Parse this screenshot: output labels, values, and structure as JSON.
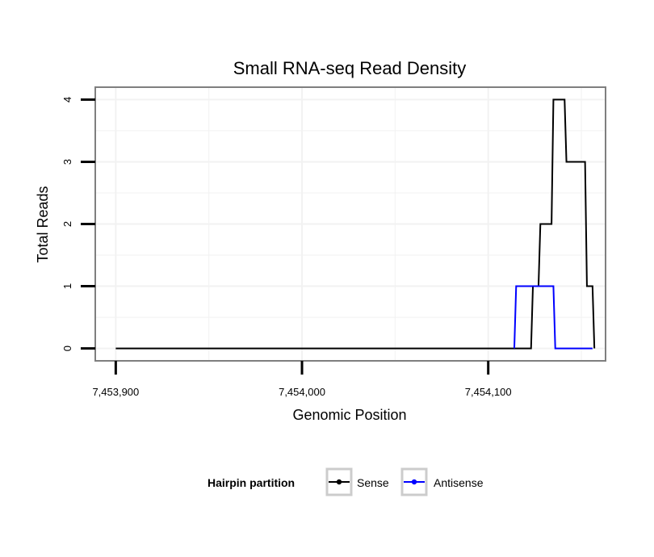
{
  "chart_data": {
    "type": "line",
    "title": "Small RNA-seq Read Density",
    "xlabel": "Genomic Position",
    "ylabel": "Total Reads",
    "xlim": [
      7453889,
      7454163
    ],
    "ylim": [
      -0.2,
      4.2
    ],
    "x_ticks": [
      7453900,
      7454000,
      7454100
    ],
    "x_tick_labels": [
      "7,453,900",
      "7,454,000",
      "7,454,100"
    ],
    "y_ticks": [
      0,
      1,
      2,
      3,
      4
    ],
    "y_tick_labels": [
      "0",
      "1",
      "2",
      "3",
      "4"
    ],
    "grid": true,
    "legend": {
      "title": "Hairpin partition",
      "position": "bottom"
    },
    "series": [
      {
        "name": "Sense",
        "color": "#000000",
        "step": true,
        "points": [
          [
            7453900,
            0
          ],
          [
            7454123,
            0
          ],
          [
            7454124,
            1
          ],
          [
            7454127,
            1
          ],
          [
            7454128,
            2
          ],
          [
            7454134,
            2
          ],
          [
            7454135,
            4
          ],
          [
            7454141,
            4
          ],
          [
            7454142,
            3
          ],
          [
            7454152,
            3
          ],
          [
            7454153,
            1
          ],
          [
            7454156,
            1
          ],
          [
            7454157,
            0
          ]
        ]
      },
      {
        "name": "Antisense",
        "color": "#0000ff",
        "step": true,
        "points": [
          [
            7454114,
            0
          ],
          [
            7454115,
            1
          ],
          [
            7454135,
            1
          ],
          [
            7454136,
            0
          ],
          [
            7454156,
            0
          ]
        ]
      }
    ]
  }
}
